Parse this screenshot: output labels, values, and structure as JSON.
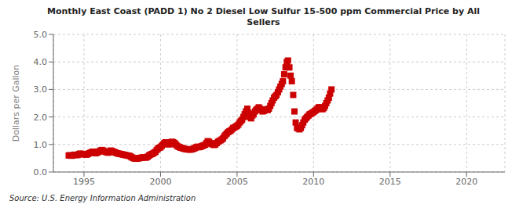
{
  "chart_data": {
    "type": "scatter",
    "title": "Monthly East Coast (PADD 1) No 2 Diesel Low Sulfur 15-500 ppm Commercial Price by All\nSellers",
    "ylabel": "Dollars per Gallon",
    "source": "Source: U.S. Energy Information Administration",
    "color": "#CC0000",
    "marker": "square",
    "grid": true,
    "xlim": [
      1993.0,
      2022.5
    ],
    "ylim": [
      0.0,
      5.0
    ],
    "xticks": [
      1995,
      2000,
      2005,
      2010,
      2015,
      2020
    ],
    "yticks": [
      {
        "value": 0.0,
        "label": "0.0"
      },
      {
        "value": 1.0,
        "label": "1.0"
      },
      {
        "value": 2.0,
        "label": "2.0"
      },
      {
        "value": 3.0,
        "label": "3.0"
      },
      {
        "value": 4.0,
        "label": "4.0"
      },
      {
        "value": 5.0,
        "label": "5.0"
      }
    ],
    "x": [
      1994.0,
      1994.08,
      1994.17,
      1994.25,
      1994.33,
      1994.42,
      1994.5,
      1994.58,
      1994.67,
      1994.75,
      1994.83,
      1994.92,
      1995.0,
      1995.08,
      1995.17,
      1995.25,
      1995.33,
      1995.42,
      1995.5,
      1995.58,
      1995.67,
      1995.75,
      1995.83,
      1995.92,
      1996.0,
      1996.08,
      1996.17,
      1996.25,
      1996.33,
      1996.42,
      1996.5,
      1996.58,
      1996.67,
      1996.75,
      1996.83,
      1996.92,
      1997.0,
      1997.08,
      1997.17,
      1997.25,
      1997.33,
      1997.42,
      1997.5,
      1997.58,
      1997.67,
      1997.75,
      1997.83,
      1997.92,
      1998.0,
      1998.08,
      1998.17,
      1998.25,
      1998.33,
      1998.42,
      1998.5,
      1998.58,
      1998.67,
      1998.75,
      1998.83,
      1998.92,
      1999.0,
      1999.08,
      1999.17,
      1999.25,
      1999.33,
      1999.42,
      1999.5,
      1999.58,
      1999.67,
      1999.75,
      1999.83,
      1999.92,
      2000.0,
      2000.08,
      2000.17,
      2000.25,
      2000.33,
      2000.42,
      2000.5,
      2000.58,
      2000.67,
      2000.75,
      2000.83,
      2000.92,
      2001.0,
      2001.08,
      2001.17,
      2001.25,
      2001.33,
      2001.42,
      2001.5,
      2001.58,
      2001.67,
      2001.75,
      2001.83,
      2001.92,
      2002.0,
      2002.08,
      2002.17,
      2002.25,
      2002.33,
      2002.42,
      2002.5,
      2002.58,
      2002.67,
      2002.75,
      2002.83,
      2002.92,
      2003.0,
      2003.08,
      2003.17,
      2003.25,
      2003.33,
      2003.42,
      2003.5,
      2003.58,
      2003.67,
      2003.75,
      2003.83,
      2003.92,
      2004.0,
      2004.08,
      2004.17,
      2004.25,
      2004.33,
      2004.42,
      2004.5,
      2004.58,
      2004.67,
      2004.75,
      2004.83,
      2004.92,
      2005.0,
      2005.08,
      2005.17,
      2005.25,
      2005.33,
      2005.42,
      2005.5,
      2005.58,
      2005.67,
      2005.75,
      2005.83,
      2005.92,
      2006.0,
      2006.08,
      2006.17,
      2006.25,
      2006.33,
      2006.42,
      2006.5,
      2006.58,
      2006.67,
      2006.75,
      2006.83,
      2006.92,
      2007.0,
      2007.08,
      2007.17,
      2007.25,
      2007.33,
      2007.42,
      2007.5,
      2007.58,
      2007.67,
      2007.75,
      2007.83,
      2007.92,
      2008.0,
      2008.08,
      2008.17,
      2008.25,
      2008.33,
      2008.42,
      2008.5,
      2008.58,
      2008.67,
      2008.75,
      2008.83,
      2008.92,
      2009.0,
      2009.08,
      2009.17,
      2009.25,
      2009.33,
      2009.42,
      2009.5,
      2009.58,
      2009.67,
      2009.75,
      2009.83,
      2009.92,
      2010.0,
      2010.08,
      2010.17,
      2010.25,
      2010.33,
      2010.42,
      2010.5,
      2010.58,
      2010.67,
      2010.75,
      2010.83,
      2010.92,
      2011.0,
      2011.08,
      2011.17
    ],
    "values": [
      0.6,
      0.61,
      0.59,
      0.6,
      0.62,
      0.63,
      0.61,
      0.62,
      0.65,
      0.67,
      0.66,
      0.64,
      0.65,
      0.64,
      0.63,
      0.65,
      0.68,
      0.7,
      0.72,
      0.74,
      0.71,
      0.68,
      0.7,
      0.72,
      0.75,
      0.78,
      0.8,
      0.78,
      0.75,
      0.73,
      0.72,
      0.7,
      0.73,
      0.78,
      0.76,
      0.74,
      0.72,
      0.7,
      0.68,
      0.67,
      0.66,
      0.65,
      0.64,
      0.63,
      0.62,
      0.61,
      0.6,
      0.59,
      0.58,
      0.55,
      0.52,
      0.5,
      0.49,
      0.48,
      0.49,
      0.5,
      0.51,
      0.52,
      0.53,
      0.54,
      0.52,
      0.53,
      0.56,
      0.6,
      0.63,
      0.65,
      0.67,
      0.7,
      0.73,
      0.8,
      0.85,
      0.88,
      0.9,
      0.95,
      1.0,
      1.05,
      1.08,
      1.05,
      1.02,
      1.0,
      1.08,
      1.1,
      1.08,
      1.05,
      1.0,
      0.95,
      0.92,
      0.9,
      0.88,
      0.87,
      0.85,
      0.84,
      0.83,
      0.82,
      0.82,
      0.81,
      0.82,
      0.83,
      0.85,
      0.87,
      0.9,
      0.92,
      0.9,
      0.91,
      0.93,
      0.95,
      0.97,
      0.99,
      1.05,
      1.12,
      1.1,
      1.05,
      1.02,
      1.0,
      0.98,
      1.0,
      1.05,
      1.1,
      1.12,
      1.15,
      1.18,
      1.22,
      1.3,
      1.35,
      1.4,
      1.45,
      1.48,
      1.5,
      1.55,
      1.6,
      1.62,
      1.65,
      1.68,
      1.72,
      1.8,
      1.85,
      1.9,
      2.0,
      2.1,
      2.2,
      2.3,
      2.15,
      2.0,
      1.95,
      2.05,
      2.1,
      2.2,
      2.25,
      2.3,
      2.35,
      2.3,
      2.25,
      2.2,
      2.22,
      2.25,
      2.28,
      2.25,
      2.3,
      2.4,
      2.5,
      2.6,
      2.7,
      2.75,
      2.8,
      2.9,
      3.0,
      3.1,
      3.2,
      3.3,
      3.55,
      3.8,
      4.0,
      4.05,
      3.8,
      3.5,
      3.3,
      2.8,
      2.2,
      1.8,
      1.6,
      1.58,
      1.55,
      1.6,
      1.7,
      1.8,
      1.9,
      1.95,
      2.0,
      2.05,
      2.1,
      2.12,
      2.15,
      2.18,
      2.22,
      2.25,
      2.3,
      2.35,
      2.35,
      2.3,
      2.28,
      2.32,
      2.4,
      2.5,
      2.6,
      2.7,
      2.85,
      3.0
    ]
  }
}
